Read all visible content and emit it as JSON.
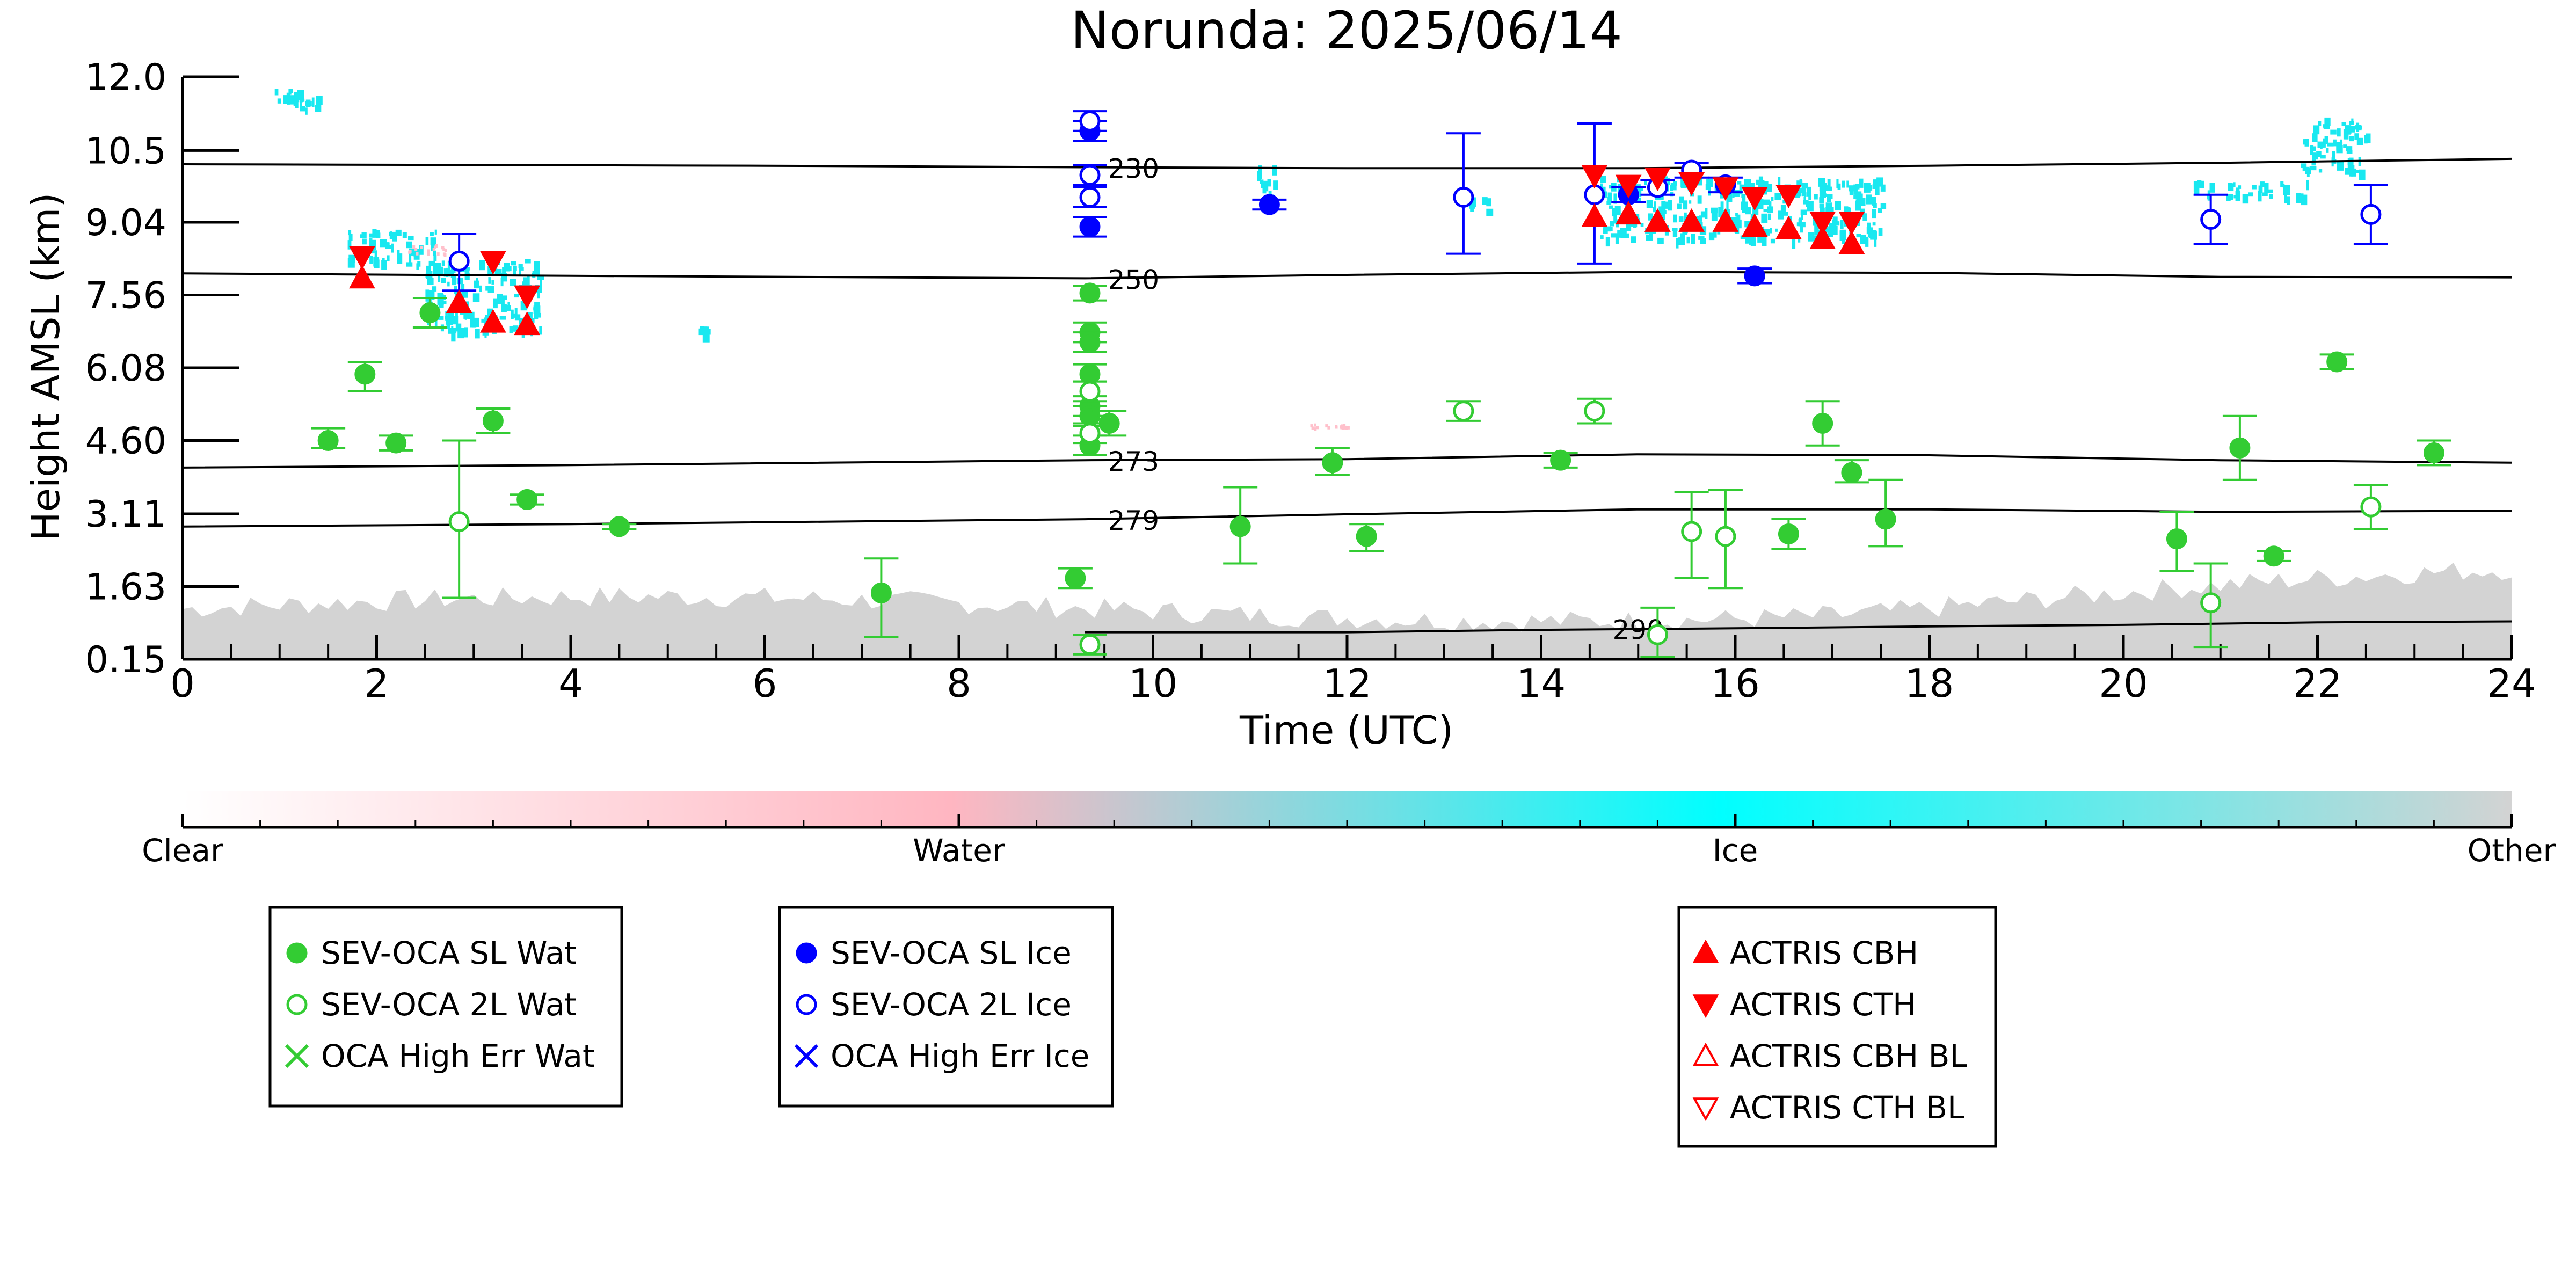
{
  "chart_data": {
    "type": "scatter",
    "title": "Norunda: 2025/06/14",
    "xlabel": "Time (UTC)",
    "ylabel": "Height AMSL (km)",
    "xlim": [
      0,
      24
    ],
    "ylim": [
      0.15,
      12.0
    ],
    "x_ticks": [
      "0",
      "2",
      "4",
      "6",
      "8",
      "10",
      "12",
      "14",
      "16",
      "18",
      "20",
      "22",
      "24"
    ],
    "y_ticks": [
      "0.15",
      "1.63",
      "3.11",
      "4.60",
      "6.08",
      "7.56",
      "9.04",
      "10.5",
      "12.0"
    ],
    "grid": false,
    "colorbar": {
      "labels": [
        "Clear",
        "Water",
        "Ice",
        "Other"
      ],
      "colors": [
        "#ffffff",
        "#ffb6c1",
        "#00ffff",
        "#d3d3d3"
      ]
    },
    "isotherms": [
      {
        "label": "230",
        "points": [
          [
            0,
            10.22
          ],
          [
            6,
            10.19
          ],
          [
            9.3,
            10.16
          ],
          [
            12,
            10.14
          ],
          [
            15,
            10.14
          ],
          [
            18,
            10.19
          ],
          [
            21,
            10.25
          ],
          [
            24,
            10.33
          ]
        ]
      },
      {
        "label": "250",
        "points": [
          [
            0,
            8.0
          ],
          [
            4,
            7.95
          ],
          [
            9.3,
            7.9
          ],
          [
            12,
            7.97
          ],
          [
            15,
            8.03
          ],
          [
            18,
            8.01
          ],
          [
            21,
            7.93
          ],
          [
            24,
            7.92
          ]
        ]
      },
      {
        "label": "273",
        "points": [
          [
            0,
            4.05
          ],
          [
            4,
            4.1
          ],
          [
            9.3,
            4.2
          ],
          [
            12,
            4.22
          ],
          [
            15,
            4.32
          ],
          [
            18,
            4.3
          ],
          [
            21,
            4.2
          ],
          [
            24,
            4.15
          ]
        ]
      },
      {
        "label": "279",
        "points": [
          [
            0,
            2.85
          ],
          [
            4,
            2.9
          ],
          [
            9.3,
            3.0
          ],
          [
            12,
            3.1
          ],
          [
            15,
            3.2
          ],
          [
            18,
            3.2
          ],
          [
            21,
            3.15
          ],
          [
            24,
            3.17
          ]
        ]
      },
      {
        "label": "290",
        "points": [
          [
            9.3,
            0.7
          ],
          [
            12,
            0.7
          ],
          [
            14,
            0.75
          ],
          [
            16,
            0.78
          ],
          [
            18,
            0.82
          ],
          [
            20,
            0.85
          ],
          [
            22,
            0.9
          ],
          [
            24,
            0.92
          ]
        ]
      }
    ],
    "legend_groups": [
      {
        "entries": [
          {
            "name": "SEV-OCA SL Wat",
            "marker": "filled-circle",
            "color": "#33cc33"
          },
          {
            "name": "SEV-OCA 2L Wat",
            "marker": "open-circle",
            "color": "#33cc33"
          },
          {
            "name": "OCA High Err Wat",
            "marker": "x",
            "color": "#33cc33"
          }
        ]
      },
      {
        "entries": [
          {
            "name": "SEV-OCA SL Ice",
            "marker": "filled-circle",
            "color": "#0000ff"
          },
          {
            "name": "SEV-OCA 2L Ice",
            "marker": "open-circle",
            "color": "#0000ff"
          },
          {
            "name": "OCA High Err Ice",
            "marker": "x",
            "color": "#0000ff"
          }
        ]
      },
      {
        "entries": [
          {
            "name": "ACTRIS CBH",
            "marker": "triangle-up",
            "color": "#ff0000"
          },
          {
            "name": "ACTRIS CTH",
            "marker": "triangle-down",
            "color": "#ff0000"
          },
          {
            "name": "ACTRIS CBH BL",
            "marker": "open-triangle-up",
            "color": "#ff0000"
          },
          {
            "name": "ACTRIS CTH BL",
            "marker": "open-triangle-down",
            "color": "#ff0000"
          }
        ]
      }
    ],
    "series": [
      {
        "name": "SEV-OCA SL Wat",
        "color": "#33cc33",
        "marker": "filled-circle",
        "points": [
          {
            "x": 1.5,
            "y": 4.6,
            "lo": 4.45,
            "hi": 4.85
          },
          {
            "x": 1.88,
            "y": 5.95,
            "lo": 5.6,
            "hi": 6.2
          },
          {
            "x": 2.2,
            "y": 4.55,
            "lo": 4.4,
            "hi": 4.7
          },
          {
            "x": 2.55,
            "y": 7.2,
            "lo": 6.9,
            "hi": 7.5
          },
          {
            "x": 3.2,
            "y": 5.0,
            "lo": 4.75,
            "hi": 5.25
          },
          {
            "x": 3.55,
            "y": 3.4,
            "lo": 3.3,
            "hi": 3.5
          },
          {
            "x": 4.5,
            "y": 2.85,
            "lo": 2.8,
            "hi": 2.9
          },
          {
            "x": 7.2,
            "y": 1.5,
            "lo": 0.6,
            "hi": 2.2
          },
          {
            "x": 9.2,
            "y": 1.8,
            "lo": 1.6,
            "hi": 2.0
          },
          {
            "x": 9.35,
            "y": 7.6,
            "lo": 7.45,
            "hi": 7.75
          },
          {
            "x": 9.35,
            "y": 6.8,
            "lo": 6.6,
            "hi": 7.0
          },
          {
            "x": 9.35,
            "y": 6.6,
            "lo": 6.4,
            "hi": 6.8
          },
          {
            "x": 9.35,
            "y": 5.95,
            "lo": 5.8,
            "hi": 6.15
          },
          {
            "x": 9.35,
            "y": 5.3,
            "lo": 5.1,
            "hi": 5.5
          },
          {
            "x": 9.35,
            "y": 5.1,
            "lo": 4.9,
            "hi": 5.3
          },
          {
            "x": 9.55,
            "y": 4.95,
            "lo": 4.7,
            "hi": 5.2
          },
          {
            "x": 9.35,
            "y": 4.5,
            "lo": 4.3,
            "hi": 4.7
          },
          {
            "x": 10.9,
            "y": 2.85,
            "lo": 2.1,
            "hi": 3.65
          },
          {
            "x": 11.85,
            "y": 4.15,
            "lo": 3.9,
            "hi": 4.45
          },
          {
            "x": 12.2,
            "y": 2.65,
            "lo": 2.35,
            "hi": 2.9
          },
          {
            "x": 14.2,
            "y": 4.2,
            "lo": 4.05,
            "hi": 4.35
          },
          {
            "x": 16.55,
            "y": 2.7,
            "lo": 2.4,
            "hi": 3.0
          },
          {
            "x": 16.9,
            "y": 4.95,
            "lo": 4.5,
            "hi": 5.4
          },
          {
            "x": 17.2,
            "y": 3.95,
            "lo": 3.75,
            "hi": 4.2
          },
          {
            "x": 17.55,
            "y": 3.0,
            "lo": 2.45,
            "hi": 3.8
          },
          {
            "x": 20.55,
            "y": 2.6,
            "lo": 1.95,
            "hi": 3.15
          },
          {
            "x": 21.2,
            "y": 4.45,
            "lo": 3.8,
            "hi": 5.1
          },
          {
            "x": 21.55,
            "y": 2.25,
            "lo": 2.15,
            "hi": 2.35
          },
          {
            "x": 22.2,
            "y": 6.2,
            "lo": 6.05,
            "hi": 6.35
          },
          {
            "x": 23.2,
            "y": 4.35,
            "lo": 4.1,
            "hi": 4.6
          }
        ]
      },
      {
        "name": "SEV-OCA 2L Wat",
        "color": "#33cc33",
        "marker": "open-circle",
        "points": [
          {
            "x": 2.85,
            "y": 2.95,
            "lo": 1.4,
            "hi": 4.6
          },
          {
            "x": 9.35,
            "y": 5.6,
            "lo": 5.4,
            "hi": 5.8
          },
          {
            "x": 9.35,
            "y": 4.75,
            "lo": 4.55,
            "hi": 4.95
          },
          {
            "x": 9.35,
            "y": 0.45,
            "lo": 0.25,
            "hi": 0.65
          },
          {
            "x": 13.2,
            "y": 5.2,
            "lo": 5.0,
            "hi": 5.4
          },
          {
            "x": 14.55,
            "y": 5.2,
            "lo": 4.95,
            "hi": 5.45
          },
          {
            "x": 15.2,
            "y": 0.65,
            "lo": 0.2,
            "hi": 1.2
          },
          {
            "x": 15.55,
            "y": 2.75,
            "lo": 1.8,
            "hi": 3.55
          },
          {
            "x": 15.9,
            "y": 2.65,
            "lo": 1.6,
            "hi": 3.6
          },
          {
            "x": 20.9,
            "y": 1.3,
            "lo": 0.4,
            "hi": 2.1
          },
          {
            "x": 22.55,
            "y": 3.25,
            "lo": 2.8,
            "hi": 3.7
          }
        ]
      },
      {
        "name": "SEV-OCA SL Ice",
        "color": "#0000ff",
        "marker": "filled-circle",
        "points": [
          {
            "x": 9.35,
            "y": 10.9,
            "lo": 10.7,
            "hi": 11.1
          },
          {
            "x": 9.35,
            "y": 8.95,
            "lo": 8.75,
            "hi": 9.15
          },
          {
            "x": 11.2,
            "y": 9.4,
            "lo": 9.3,
            "hi": 9.5
          },
          {
            "x": 14.9,
            "y": 9.6,
            "lo": 9.45,
            "hi": 9.75
          },
          {
            "x": 16.2,
            "y": 7.95,
            "lo": 7.8,
            "hi": 8.1
          }
        ]
      },
      {
        "name": "SEV-OCA 2L Ice",
        "color": "#0000ff",
        "marker": "open-circle",
        "points": [
          {
            "x": 2.85,
            "y": 8.25,
            "lo": 7.65,
            "hi": 8.8
          },
          {
            "x": 9.35,
            "y": 11.1,
            "lo": 10.9,
            "hi": 11.3
          },
          {
            "x": 9.35,
            "y": 10.0,
            "lo": 9.8,
            "hi": 10.2
          },
          {
            "x": 9.35,
            "y": 9.55,
            "lo": 9.35,
            "hi": 9.75
          },
          {
            "x": 13.2,
            "y": 9.55,
            "lo": 8.4,
            "hi": 10.85
          },
          {
            "x": 14.55,
            "y": 9.6,
            "lo": 8.2,
            "hi": 11.05
          },
          {
            "x": 15.2,
            "y": 9.75,
            "lo": 9.6,
            "hi": 9.9
          },
          {
            "x": 15.55,
            "y": 10.1,
            "lo": 9.95,
            "hi": 10.25
          },
          {
            "x": 15.9,
            "y": 9.8,
            "lo": 9.65,
            "hi": 9.95
          },
          {
            "x": 20.9,
            "y": 9.1,
            "lo": 8.6,
            "hi": 9.6
          },
          {
            "x": 22.55,
            "y": 9.2,
            "lo": 8.6,
            "hi": 9.8
          }
        ]
      },
      {
        "name": "ACTRIS CBH",
        "color": "#ff0000",
        "marker": "triangle-up",
        "points": [
          {
            "x": 1.85,
            "y": 7.9
          },
          {
            "x": 2.85,
            "y": 7.4
          },
          {
            "x": 3.2,
            "y": 7.0
          },
          {
            "x": 3.55,
            "y": 6.95
          },
          {
            "x": 14.55,
            "y": 9.15
          },
          {
            "x": 14.9,
            "y": 9.2
          },
          {
            "x": 15.2,
            "y": 9.05
          },
          {
            "x": 15.55,
            "y": 9.05
          },
          {
            "x": 15.9,
            "y": 9.05
          },
          {
            "x": 16.2,
            "y": 8.95
          },
          {
            "x": 16.55,
            "y": 8.9
          },
          {
            "x": 16.9,
            "y": 8.7
          },
          {
            "x": 17.2,
            "y": 8.6
          }
        ]
      },
      {
        "name": "ACTRIS CTH",
        "color": "#ff0000",
        "marker": "triangle-down",
        "points": [
          {
            "x": 1.85,
            "y": 8.35
          },
          {
            "x": 3.2,
            "y": 8.25
          },
          {
            "x": 3.55,
            "y": 7.55
          },
          {
            "x": 14.55,
            "y": 10.0
          },
          {
            "x": 14.9,
            "y": 9.8
          },
          {
            "x": 15.2,
            "y": 9.95
          },
          {
            "x": 15.55,
            "y": 9.85
          },
          {
            "x": 15.9,
            "y": 9.75
          },
          {
            "x": 16.2,
            "y": 9.55
          },
          {
            "x": 16.55,
            "y": 9.6
          },
          {
            "x": 16.9,
            "y": 9.05
          },
          {
            "x": 17.2,
            "y": 9.05
          }
        ]
      }
    ]
  }
}
